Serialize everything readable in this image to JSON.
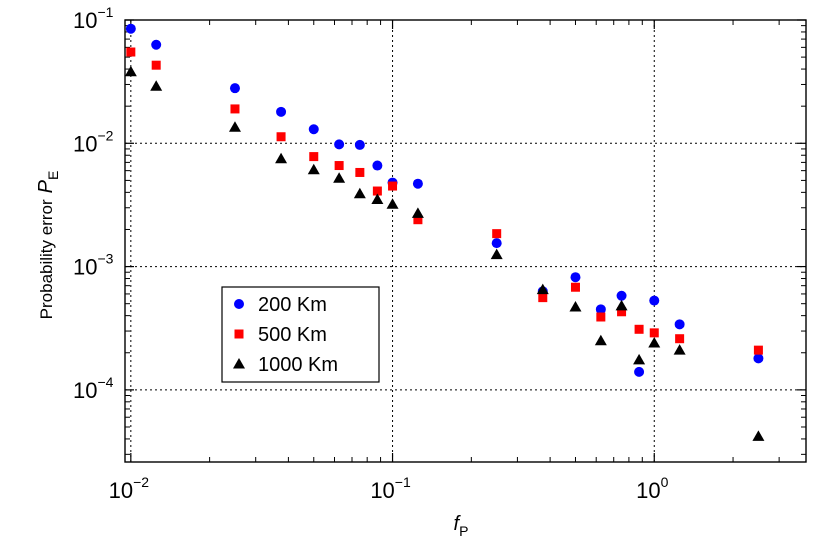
{
  "chart_data": {
    "type": "scatter",
    "xscale": "log",
    "yscale": "log",
    "xlim": [
      0.0095,
      3.8
    ],
    "ylim": [
      2.6e-05,
      0.1
    ],
    "xlabel": "f",
    "xlabel_sub": "P",
    "ylabel": "Probability error",
    "ylabel_symbol": "P",
    "ylabel_sub": "E",
    "grid": true,
    "legend_position": "lower-left",
    "x_ticks": [
      {
        "value": 0.01,
        "base": "10",
        "exp": "−2"
      },
      {
        "value": 0.1,
        "base": "10",
        "exp": "−1"
      },
      {
        "value": 1,
        "base": "10",
        "exp": "0"
      }
    ],
    "y_ticks": [
      {
        "value": 0.0001,
        "base": "10",
        "exp": "−4"
      },
      {
        "value": 0.001,
        "base": "10",
        "exp": "−3"
      },
      {
        "value": 0.01,
        "base": "10",
        "exp": "−2"
      },
      {
        "value": 0.1,
        "base": "10",
        "exp": "−1"
      }
    ],
    "series": [
      {
        "name": "200 Km",
        "marker": "circle",
        "color": "#0000ff",
        "points": [
          [
            0.01,
            0.085
          ],
          [
            0.0125,
            0.063
          ],
          [
            0.025,
            0.028
          ],
          [
            0.0375,
            0.018
          ],
          [
            0.05,
            0.013
          ],
          [
            0.0625,
            0.0098
          ],
          [
            0.075,
            0.0097
          ],
          [
            0.0875,
            0.0066
          ],
          [
            0.1,
            0.0048
          ],
          [
            0.125,
            0.0047
          ],
          [
            0.25,
            0.00155
          ],
          [
            0.375,
            0.00063
          ],
          [
            0.5,
            0.00082
          ],
          [
            0.625,
            0.00045
          ],
          [
            0.75,
            0.00058
          ],
          [
            0.875,
            0.00014
          ],
          [
            1.0,
            0.00053
          ],
          [
            1.25,
            0.00034
          ],
          [
            2.5,
            0.00018
          ]
        ]
      },
      {
        "name": "500 Km",
        "marker": "square",
        "color": "#ff0000",
        "points": [
          [
            0.01,
            0.055
          ],
          [
            0.0125,
            0.043
          ],
          [
            0.025,
            0.019
          ],
          [
            0.0375,
            0.0113
          ],
          [
            0.05,
            0.0078
          ],
          [
            0.0625,
            0.0066
          ],
          [
            0.075,
            0.0058
          ],
          [
            0.0875,
            0.0041
          ],
          [
            0.1,
            0.0045
          ],
          [
            0.125,
            0.0024
          ],
          [
            0.25,
            0.00185
          ],
          [
            0.375,
            0.00056
          ],
          [
            0.5,
            0.00068
          ],
          [
            0.625,
            0.00039
          ],
          [
            0.75,
            0.00043
          ],
          [
            0.875,
            0.00031
          ],
          [
            1.0,
            0.00029
          ],
          [
            1.25,
            0.00026
          ],
          [
            2.5,
            0.00021
          ]
        ]
      },
      {
        "name": "1000 Km",
        "marker": "triangle",
        "color": "#000000",
        "points": [
          [
            0.01,
            0.038
          ],
          [
            0.0125,
            0.029
          ],
          [
            0.025,
            0.0135
          ],
          [
            0.0375,
            0.0075
          ],
          [
            0.05,
            0.0061
          ],
          [
            0.0625,
            0.0052
          ],
          [
            0.075,
            0.0039
          ],
          [
            0.0875,
            0.0035
          ],
          [
            0.1,
            0.0032
          ],
          [
            0.125,
            0.0027
          ],
          [
            0.25,
            0.00125
          ],
          [
            0.375,
            0.00065
          ],
          [
            0.5,
            0.00047
          ],
          [
            0.625,
            0.00025
          ],
          [
            0.75,
            0.00048
          ],
          [
            0.875,
            0.000175
          ],
          [
            1.0,
            0.00024
          ],
          [
            1.25,
            0.00021
          ],
          [
            2.5,
            4.2e-05
          ]
        ]
      }
    ]
  }
}
